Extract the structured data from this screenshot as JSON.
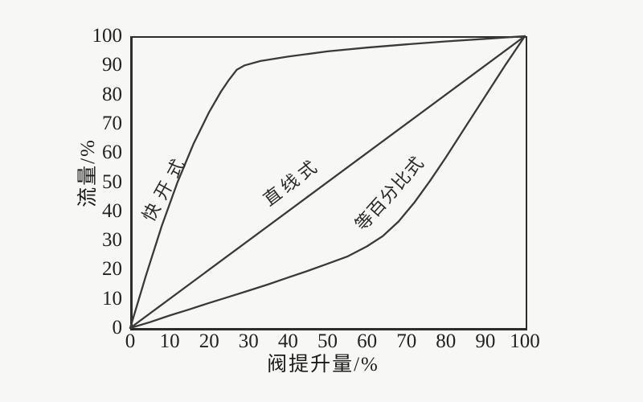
{
  "page": {
    "background_color": "#f7f7f5",
    "line_color": "#3a3a3a",
    "box_border_color": "#2d2d2d",
    "text_color": "#1f1f1f"
  },
  "chart_data": {
    "type": "line",
    "title": "",
    "xlabel": "阀提升量/%",
    "ylabel": "流量/%",
    "xlim": [
      0,
      100
    ],
    "ylim": [
      0,
      100
    ],
    "x_ticks": [
      0,
      10,
      20,
      30,
      40,
      50,
      60,
      70,
      80,
      90,
      100
    ],
    "y_ticks": [
      0,
      10,
      20,
      30,
      40,
      50,
      60,
      70,
      80,
      90,
      100
    ],
    "grid": false,
    "legend_position": "labels-rotated-along-curves",
    "series": [
      {
        "name": "快开式",
        "points": [
          [
            0,
            0
          ],
          [
            4,
            18
          ],
          [
            8,
            35
          ],
          [
            12,
            50
          ],
          [
            16,
            63
          ],
          [
            20,
            74
          ],
          [
            23,
            81
          ],
          [
            25,
            85
          ],
          [
            27,
            88.5
          ],
          [
            29,
            90
          ],
          [
            33,
            91.5
          ],
          [
            40,
            93
          ],
          [
            50,
            94.8
          ],
          [
            60,
            96.1
          ],
          [
            70,
            97.2
          ],
          [
            80,
            98.2
          ],
          [
            90,
            99.1
          ],
          [
            100,
            100
          ]
        ]
      },
      {
        "name": "直线式",
        "points": [
          [
            0,
            0
          ],
          [
            100,
            100
          ]
        ]
      },
      {
        "name": "等百分比式",
        "points": [
          [
            0,
            0
          ],
          [
            5,
            2
          ],
          [
            10,
            4.3
          ],
          [
            15,
            6.4
          ],
          [
            20,
            8.6
          ],
          [
            25,
            10.7
          ],
          [
            30,
            12.8
          ],
          [
            35,
            15
          ],
          [
            40,
            17.3
          ],
          [
            45,
            19.6
          ],
          [
            50,
            22
          ],
          [
            55,
            24.5
          ],
          [
            60,
            28
          ],
          [
            64,
            31.5
          ],
          [
            68,
            36.5
          ],
          [
            72,
            43
          ],
          [
            76,
            50.5
          ],
          [
            80,
            58.5
          ],
          [
            85,
            69
          ],
          [
            90,
            79.5
          ],
          [
            95,
            90
          ],
          [
            100,
            100
          ]
        ]
      }
    ]
  }
}
